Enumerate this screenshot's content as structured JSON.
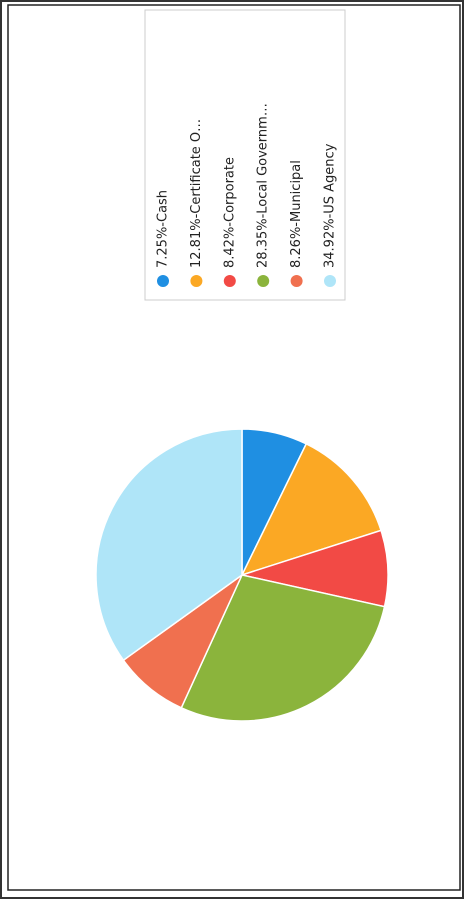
{
  "chart_data": {
    "type": "pie",
    "categories": [
      "7.25%-Cash",
      "12.81%-Certificate O…",
      "8.42%-Corporate",
      "28.35%-Local Governm…",
      "8.26%-Municipal",
      "34.92%-US Agency"
    ],
    "values": [
      7.25,
      12.81,
      8.42,
      28.35,
      8.26,
      34.92
    ],
    "colors": [
      "#1f8fe2",
      "#fba824",
      "#f24a45",
      "#8bb43c",
      "#f0704f",
      "#afe5f8"
    ],
    "legend": "top"
  }
}
